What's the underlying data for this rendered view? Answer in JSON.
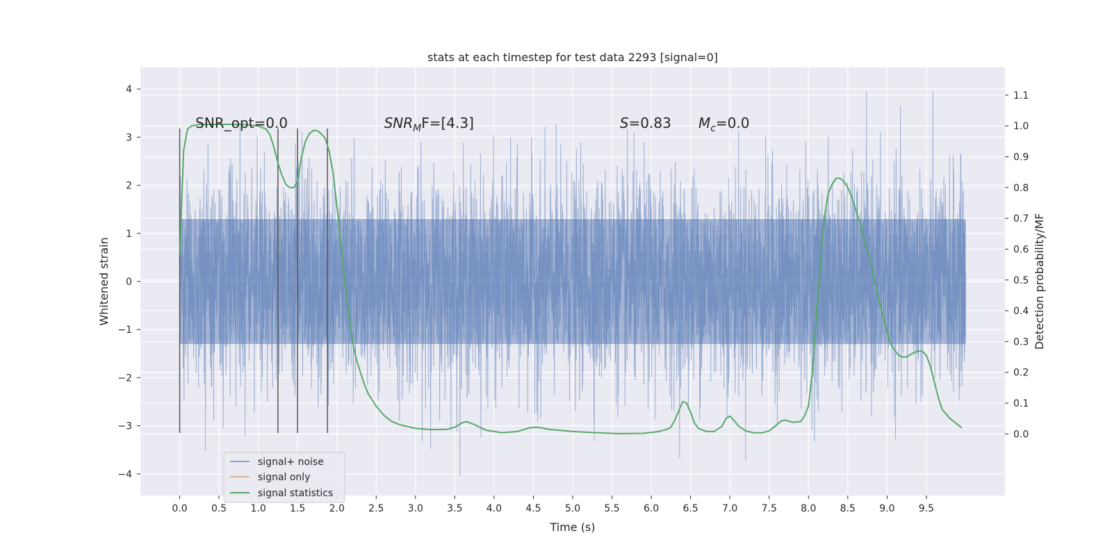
{
  "chart_data": {
    "type": "line",
    "title": "stats at each timestep for test data 2293 [signal=0]",
    "xlabel": "Time (s)",
    "ylabel_left": "Whitened strain",
    "ylabel_right": "Detection probability/MF",
    "xlim": [
      -0.5,
      10.5
    ],
    "ylim_left": [
      -4.45,
      4.45
    ],
    "ylim_right": [
      -0.2,
      1.19
    ],
    "x_ticks": [
      0.0,
      0.5,
      1.0,
      1.5,
      2.0,
      2.5,
      3.0,
      3.5,
      4.0,
      4.5,
      5.0,
      5.5,
      6.0,
      6.5,
      7.0,
      7.5,
      8.0,
      8.5,
      9.0,
      9.5
    ],
    "y_ticks_left": [
      4,
      3,
      2,
      1,
      0,
      -1,
      -2,
      -3,
      -4
    ],
    "y_tick_labels_left": [
      "4",
      "3",
      "2",
      "1",
      "0",
      "−1",
      "−2",
      "−3",
      "−4"
    ],
    "y_ticks_right": [
      1.1,
      1.0,
      0.9,
      0.8,
      0.7,
      0.6,
      0.5,
      0.4,
      0.3,
      0.2,
      0.1,
      0.0
    ],
    "grid": true,
    "legend_position": "lower-left",
    "annotations": [
      "SNR_opt=0.0",
      "SNR",
      "M",
      "F=[4.3]",
      "S",
      "=0.83",
      "M",
      "c",
      "=0.0"
    ],
    "annotation_x": [
      0.2,
      2.6,
      5.6,
      6.6
    ],
    "vertical_markers": {
      "x": [
        0.0,
        1.25,
        1.5,
        1.88
      ],
      "ymin": -3.15,
      "ymax": 3.18,
      "color": "#555555"
    },
    "series": [
      {
        "name": "signal+ noise",
        "color": "#4c72b0",
        "opacity": 0.5,
        "description_range": [
          0.0,
          10.0
        ],
        "typical_amplitude": 1.3,
        "max": 4.05,
        "min": -4.05
      },
      {
        "name": "signal only",
        "color": "#dd8452",
        "x": [],
        "y": []
      },
      {
        "name": "signal statistics",
        "color": "#55a868",
        "axis": "right",
        "x": [
          0.0,
          0.05,
          0.1,
          0.15,
          0.25,
          0.4,
          0.6,
          0.8,
          1.0,
          1.1,
          1.15,
          1.2,
          1.25,
          1.3,
          1.35,
          1.4,
          1.45,
          1.5,
          1.55,
          1.6,
          1.65,
          1.7,
          1.75,
          1.8,
          1.85,
          1.9,
          1.95,
          2.0,
          2.05,
          2.1,
          2.15,
          2.2,
          2.25,
          2.3,
          2.35,
          2.4,
          2.5,
          2.6,
          2.7,
          2.8,
          3.0,
          3.2,
          3.4,
          3.5,
          3.6,
          3.65,
          3.75,
          3.9,
          4.1,
          4.3,
          4.45,
          4.55,
          4.7,
          5.0,
          5.3,
          5.6,
          5.9,
          6.1,
          6.2,
          6.25,
          6.3,
          6.35,
          6.4,
          6.45,
          6.5,
          6.55,
          6.6,
          6.7,
          6.8,
          6.9,
          6.95,
          7.0,
          7.05,
          7.1,
          7.2,
          7.3,
          7.4,
          7.5,
          7.6,
          7.65,
          7.7,
          7.8,
          7.9,
          7.95,
          8.0,
          8.05,
          8.1,
          8.15,
          8.2,
          8.25,
          8.3,
          8.35,
          8.4,
          8.45,
          8.5,
          8.55,
          8.6,
          8.65,
          8.7,
          8.8,
          8.9,
          9.0,
          9.05,
          9.1,
          9.15,
          9.2,
          9.25,
          9.3,
          9.35,
          9.4,
          9.45,
          9.5,
          9.55,
          9.6,
          9.65,
          9.7,
          9.8,
          9.9,
          9.95
        ],
        "y": [
          0.58,
          0.92,
          0.99,
          1.0,
          1.005,
          1.005,
          1.005,
          1.005,
          1.0,
          0.99,
          0.97,
          0.93,
          0.88,
          0.84,
          0.81,
          0.8,
          0.8,
          0.82,
          0.9,
          0.95,
          0.975,
          0.985,
          0.985,
          0.975,
          0.96,
          0.92,
          0.85,
          0.74,
          0.62,
          0.5,
          0.39,
          0.3,
          0.24,
          0.2,
          0.16,
          0.13,
          0.09,
          0.06,
          0.04,
          0.03,
          0.018,
          0.014,
          0.015,
          0.022,
          0.037,
          0.04,
          0.03,
          0.012,
          0.004,
          0.008,
          0.02,
          0.022,
          0.015,
          0.008,
          0.004,
          0.001,
          0.002,
          0.008,
          0.015,
          0.022,
          0.045,
          0.075,
          0.105,
          0.1,
          0.07,
          0.035,
          0.018,
          0.008,
          0.008,
          0.025,
          0.05,
          0.058,
          0.045,
          0.028,
          0.01,
          0.004,
          0.003,
          0.01,
          0.03,
          0.042,
          0.045,
          0.038,
          0.04,
          0.058,
          0.09,
          0.2,
          0.38,
          0.55,
          0.7,
          0.78,
          0.81,
          0.83,
          0.83,
          0.82,
          0.8,
          0.77,
          0.73,
          0.69,
          0.64,
          0.55,
          0.43,
          0.33,
          0.29,
          0.27,
          0.255,
          0.25,
          0.25,
          0.258,
          0.265,
          0.27,
          0.268,
          0.255,
          0.22,
          0.17,
          0.12,
          0.08,
          0.05,
          0.03,
          0.02
        ]
      }
    ]
  }
}
